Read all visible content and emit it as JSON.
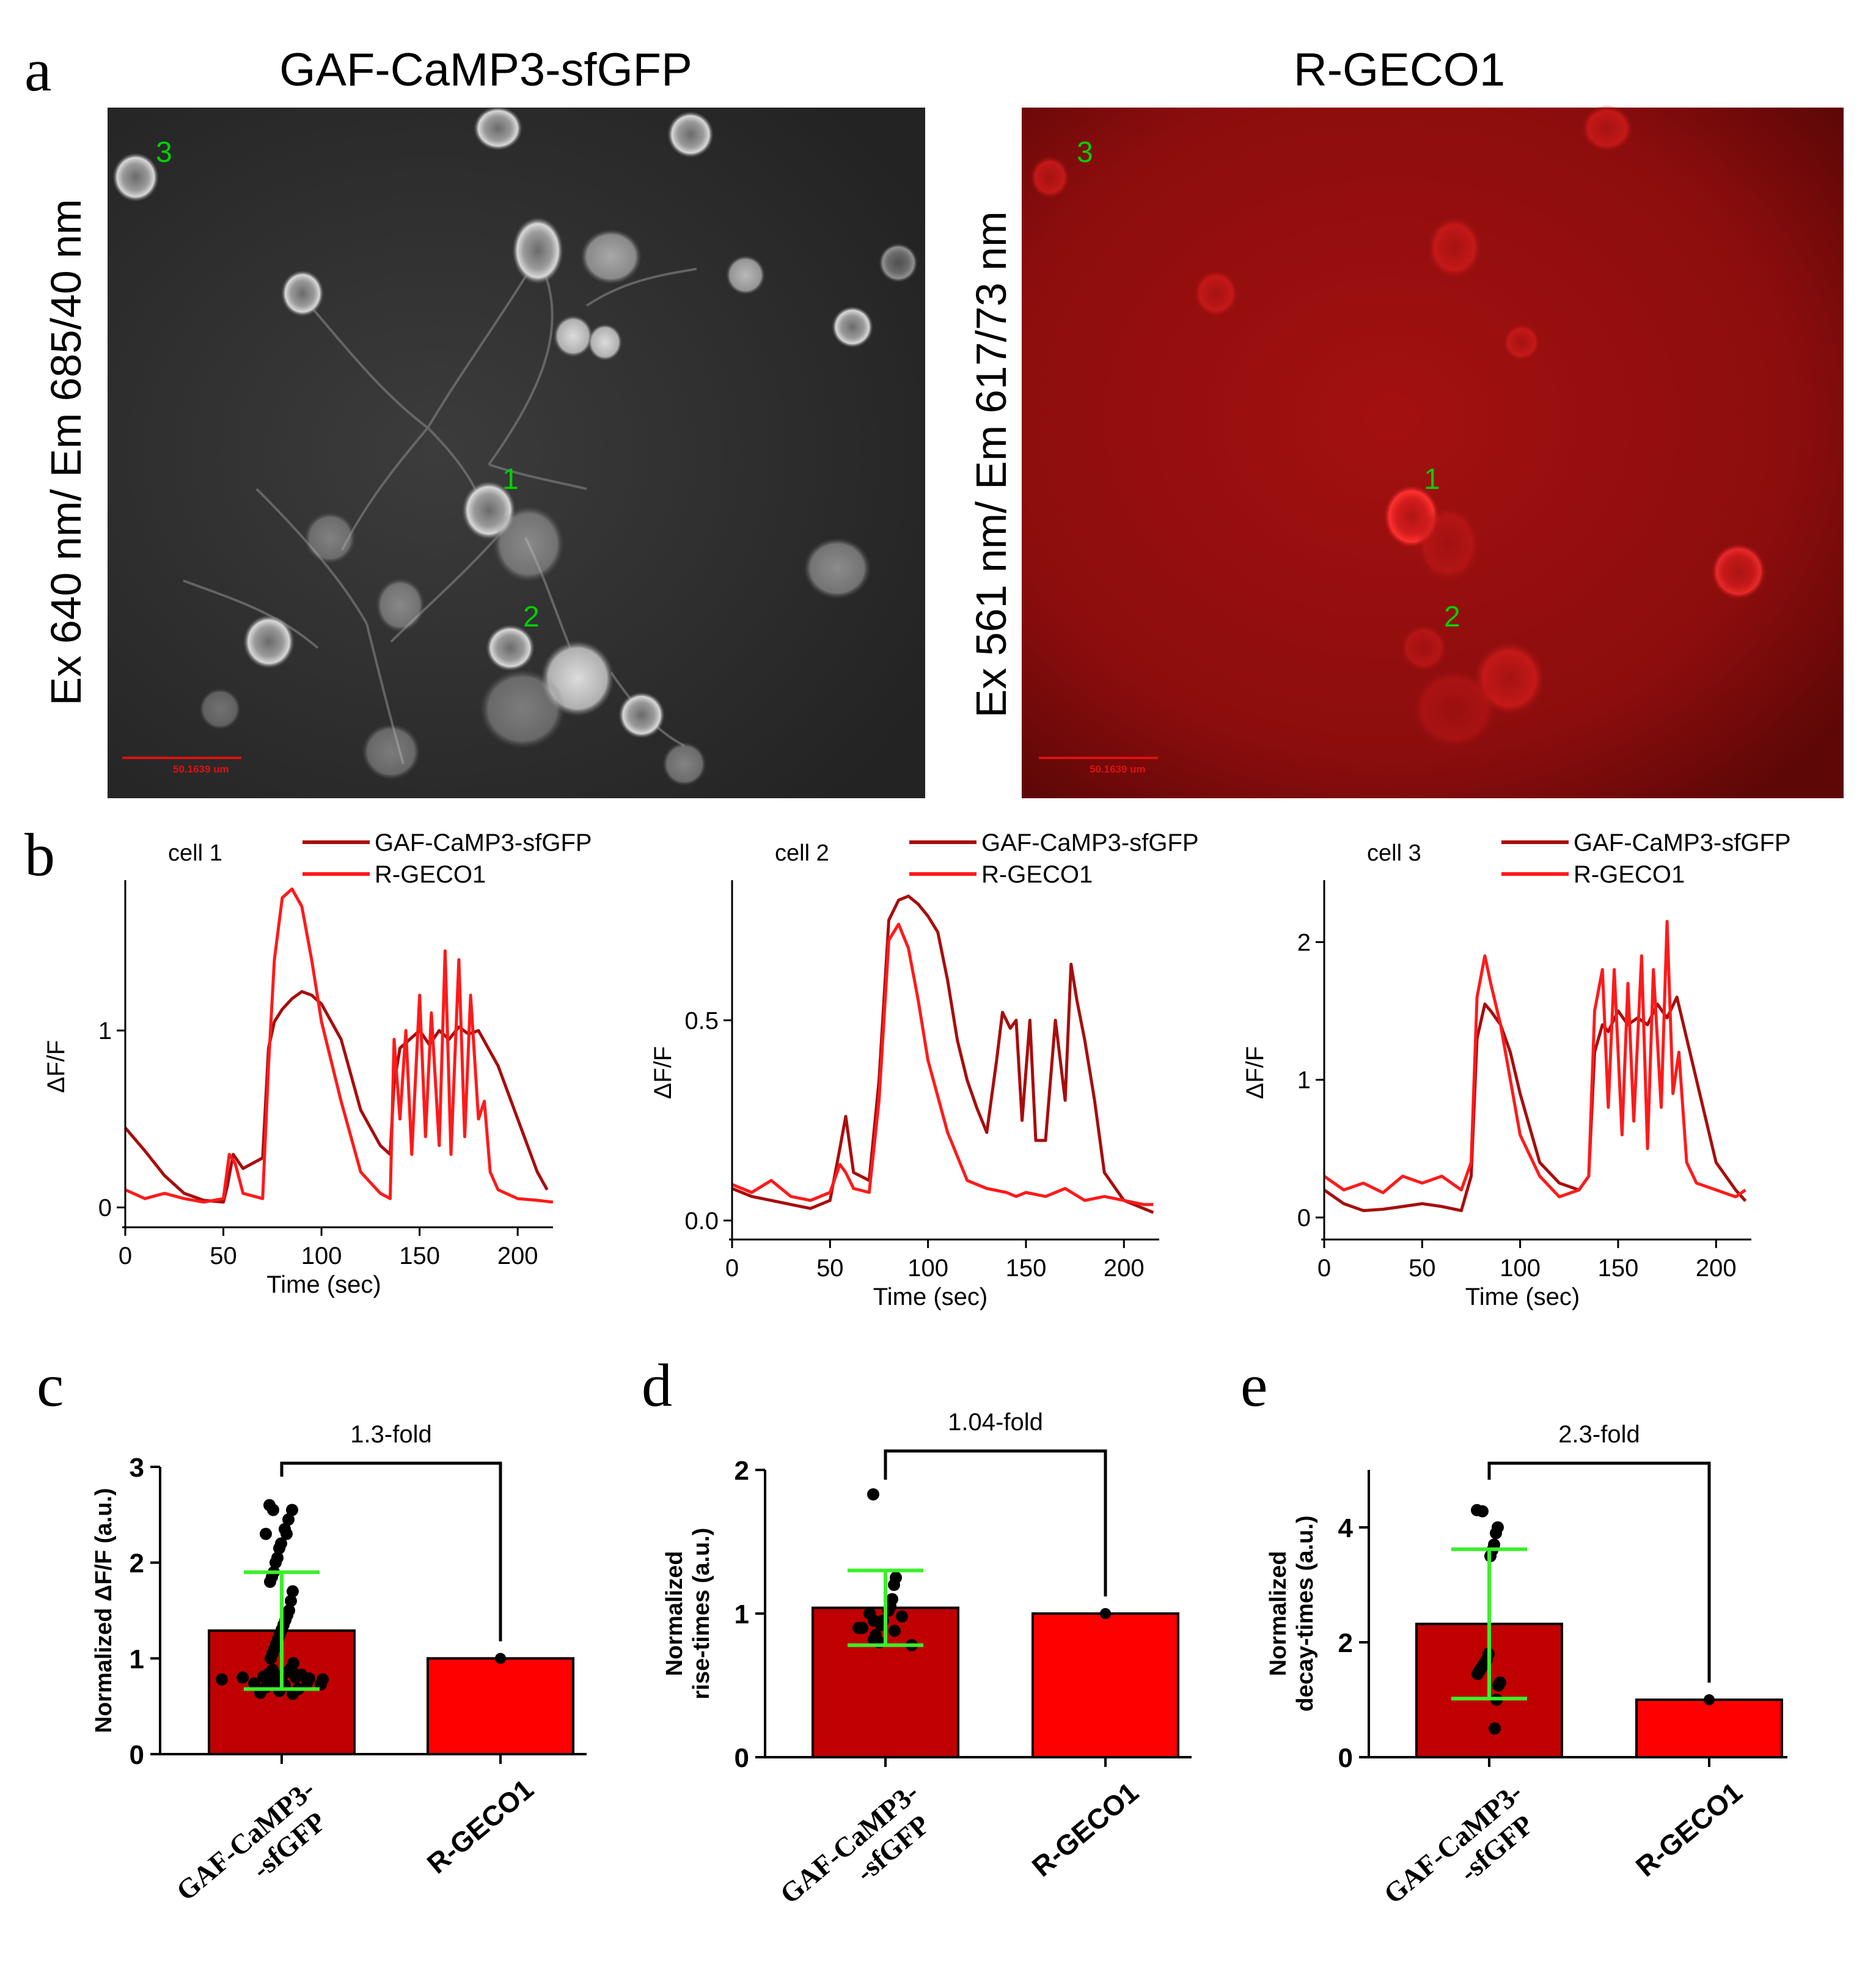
{
  "panel_letters": {
    "a": "a",
    "b": "b",
    "c": "c",
    "d": "d",
    "e": "e"
  },
  "panel_a": {
    "left": {
      "title": "GAF-CaMP3-sfGFP",
      "side_label": "Ex 640 nm/ Em 685/40 nm",
      "cell_labels": [
        "1",
        "2",
        "3"
      ],
      "scale_bar_text": "50.1639 um",
      "colors": {
        "background": "#2c2c2c",
        "cell": "#c9c9c9",
        "label": "#00d000",
        "scale_bar": "#e01010"
      }
    },
    "right": {
      "title": "R-GECO1",
      "side_label": "Ex 561 nm/ Em 617/73 nm",
      "cell_labels": [
        "1",
        "2",
        "3"
      ],
      "scale_bar_text": "50.1639 um",
      "colors": {
        "background": "#8c0d0d",
        "cell": "#ff2a2a",
        "label": "#00d000",
        "scale_bar": "#e01010"
      }
    }
  },
  "colors": {
    "gaf": "#a80d0d",
    "rgeco": "#ff1a1a",
    "bar_gaf": "#c00000",
    "bar_rgeco": "#ff0000",
    "error": "#3aef2a",
    "dots": "#000000"
  },
  "chart_data": [
    {
      "type": "line",
      "panel": "b",
      "title": "cell 1",
      "xlabel": "Time (sec)",
      "ylabel": "ΔF/F",
      "xlim": [
        0,
        218
      ],
      "ylim": [
        -0.05,
        1.85
      ],
      "xticks": [
        0,
        50,
        100,
        150,
        200
      ],
      "yticks": [
        0,
        1
      ],
      "legend": "top",
      "series": [
        {
          "name": "GAF-CaMP3-sfGFP",
          "x": [
            0,
            10,
            20,
            30,
            40,
            50,
            52,
            55,
            60,
            70,
            73,
            76,
            80,
            85,
            90,
            95,
            100,
            110,
            120,
            130,
            135,
            137,
            140,
            145,
            150,
            155,
            160,
            165,
            170,
            175,
            180,
            185,
            190,
            200,
            210,
            215
          ],
          "y": [
            0.45,
            0.32,
            0.18,
            0.08,
            0.04,
            0.03,
            0.12,
            0.3,
            0.22,
            0.28,
            0.9,
            1.05,
            1.12,
            1.18,
            1.22,
            1.2,
            1.15,
            0.95,
            0.55,
            0.35,
            0.3,
            0.7,
            0.9,
            0.95,
            1.0,
            0.92,
            1.0,
            0.95,
            1.02,
            0.98,
            1.0,
            0.9,
            0.8,
            0.5,
            0.2,
            0.1
          ]
        },
        {
          "name": "R-GECO1",
          "x": [
            0,
            10,
            20,
            30,
            40,
            50,
            53,
            56,
            60,
            70,
            73,
            76,
            80,
            85,
            90,
            95,
            100,
            110,
            120,
            130,
            135,
            137,
            140,
            143,
            146,
            150,
            153,
            156,
            160,
            163,
            166,
            170,
            173,
            176,
            180,
            183,
            186,
            190,
            200,
            210,
            218
          ],
          "y": [
            0.1,
            0.05,
            0.08,
            0.05,
            0.03,
            0.05,
            0.3,
            0.25,
            0.08,
            0.05,
            0.8,
            1.4,
            1.75,
            1.8,
            1.7,
            1.4,
            1.05,
            0.6,
            0.2,
            0.08,
            0.05,
            0.95,
            0.5,
            1.0,
            0.3,
            1.2,
            0.4,
            1.1,
            0.35,
            1.45,
            0.3,
            1.4,
            0.4,
            1.2,
            0.5,
            0.6,
            0.2,
            0.1,
            0.05,
            0.04,
            0.03
          ]
        }
      ]
    },
    {
      "type": "line",
      "panel": "b",
      "title": "cell 2",
      "xlabel": "Time (sec)",
      "ylabel": "ΔF/F",
      "xlim": [
        0,
        218
      ],
      "ylim": [
        -0.02,
        0.85
      ],
      "xticks": [
        0,
        50,
        100,
        150,
        200
      ],
      "yticks": [
        0.0,
        0.5
      ],
      "ytick_labels": [
        "0.0",
        "0.5"
      ],
      "legend": "top",
      "series": [
        {
          "name": "GAF-CaMP3-sfGFP",
          "x": [
            0,
            10,
            20,
            30,
            40,
            50,
            55,
            58,
            62,
            70,
            75,
            80,
            85,
            90,
            95,
            100,
            105,
            110,
            115,
            120,
            125,
            130,
            135,
            138,
            142,
            145,
            148,
            152,
            155,
            160,
            165,
            170,
            173,
            176,
            180,
            185,
            190,
            200,
            210,
            215
          ],
          "y": [
            0.08,
            0.06,
            0.05,
            0.04,
            0.03,
            0.05,
            0.18,
            0.26,
            0.12,
            0.1,
            0.35,
            0.75,
            0.8,
            0.81,
            0.79,
            0.76,
            0.72,
            0.6,
            0.45,
            0.35,
            0.28,
            0.22,
            0.4,
            0.52,
            0.48,
            0.5,
            0.25,
            0.5,
            0.2,
            0.2,
            0.5,
            0.3,
            0.64,
            0.55,
            0.45,
            0.3,
            0.12,
            0.05,
            0.03,
            0.02
          ]
        },
        {
          "name": "R-GECO1",
          "x": [
            0,
            10,
            20,
            30,
            40,
            50,
            55,
            58,
            62,
            70,
            75,
            80,
            85,
            90,
            95,
            100,
            110,
            120,
            130,
            140,
            145,
            150,
            160,
            170,
            180,
            190,
            200,
            210,
            215
          ],
          "y": [
            0.09,
            0.07,
            0.1,
            0.06,
            0.05,
            0.07,
            0.14,
            0.12,
            0.08,
            0.07,
            0.3,
            0.7,
            0.74,
            0.68,
            0.55,
            0.4,
            0.22,
            0.1,
            0.08,
            0.07,
            0.06,
            0.07,
            0.06,
            0.08,
            0.05,
            0.06,
            0.05,
            0.04,
            0.04
          ]
        }
      ]
    },
    {
      "type": "line",
      "panel": "b",
      "title": "cell 3",
      "xlabel": "Time (sec)",
      "ylabel": "ΔF/F",
      "xlim": [
        0,
        218
      ],
      "ylim": [
        -0.08,
        2.45
      ],
      "xticks": [
        0,
        50,
        100,
        150,
        200
      ],
      "yticks": [
        0,
        1,
        2
      ],
      "legend": "top",
      "series": [
        {
          "name": "GAF-CaMP3-sfGFP",
          "x": [
            0,
            10,
            20,
            30,
            40,
            50,
            60,
            70,
            75,
            78,
            82,
            85,
            90,
            95,
            100,
            110,
            120,
            130,
            135,
            138,
            142,
            145,
            150,
            155,
            160,
            165,
            170,
            175,
            180,
            185,
            190,
            200,
            210,
            215
          ],
          "y": [
            0.2,
            0.1,
            0.05,
            0.06,
            0.08,
            0.1,
            0.08,
            0.05,
            0.3,
            1.3,
            1.55,
            1.5,
            1.4,
            1.2,
            0.9,
            0.4,
            0.25,
            0.2,
            0.3,
            1.2,
            1.4,
            1.35,
            1.5,
            1.4,
            1.45,
            1.4,
            1.55,
            1.45,
            1.6,
            1.3,
            1.0,
            0.4,
            0.2,
            0.12
          ]
        },
        {
          "name": "R-GECO1",
          "x": [
            0,
            10,
            20,
            30,
            40,
            50,
            60,
            70,
            75,
            78,
            82,
            85,
            90,
            95,
            100,
            110,
            120,
            130,
            135,
            138,
            142,
            145,
            148,
            152,
            155,
            158,
            162,
            165,
            168,
            172,
            175,
            178,
            181,
            185,
            190,
            200,
            210,
            215
          ],
          "y": [
            0.3,
            0.2,
            0.25,
            0.18,
            0.3,
            0.25,
            0.3,
            0.2,
            0.4,
            1.6,
            1.9,
            1.7,
            1.4,
            1.0,
            0.6,
            0.3,
            0.15,
            0.2,
            0.3,
            1.5,
            1.8,
            0.8,
            1.8,
            0.6,
            1.7,
            0.7,
            1.9,
            0.5,
            1.8,
            0.8,
            2.15,
            0.9,
            1.2,
            0.4,
            0.25,
            0.2,
            0.15,
            0.2
          ]
        }
      ]
    },
    {
      "type": "bar",
      "panel": "c",
      "categories": [
        "GAF-CaMP3-\n-sfGFP",
        "R-GECO1"
      ],
      "values": [
        1.29,
        1.0
      ],
      "errors": [
        0.61,
        0.0
      ],
      "ylabel": "Normalized ΔF/F  (a.u.)",
      "ylim": [
        0,
        3
      ],
      "yticks": [
        0,
        1,
        2,
        3
      ],
      "annotation": "1.3-fold",
      "points": [
        2.6,
        2.55,
        2.55,
        2.45,
        2.3,
        2.35,
        2.3,
        2.2,
        2.15,
        2.05,
        2.0,
        1.9,
        1.85,
        1.8,
        1.7,
        1.6,
        1.5,
        1.45,
        1.4,
        1.35,
        1.3,
        1.25,
        1.2,
        1.15,
        1.1,
        1.05,
        1.0,
        0.95,
        0.9,
        0.88,
        0.86,
        0.84,
        0.83,
        0.82,
        0.81,
        0.8,
        0.8,
        0.79,
        0.78,
        0.78,
        0.77,
        0.76,
        0.75,
        0.74,
        0.73,
        0.72,
        0.7,
        0.68,
        0.66,
        0.64,
        0.63
      ]
    },
    {
      "type": "bar",
      "panel": "d",
      "categories": [
        "GAF-CaMP3-\n-sfGFP",
        "R-GECO1"
      ],
      "values": [
        1.04,
        1.0
      ],
      "errors": [
        0.26,
        0.0
      ],
      "ylabel": "Normalized\nrise-times  (a.u.)",
      "ylim": [
        0,
        2
      ],
      "yticks": [
        0,
        1,
        2
      ],
      "annotation": "1.04-fold",
      "points": [
        1.83,
        1.25,
        1.2,
        1.1,
        1.05,
        1.02,
        1.0,
        0.98,
        0.95,
        0.92,
        0.9,
        0.88,
        0.85,
        0.82,
        0.8,
        0.78,
        0.9,
        0.95
      ]
    },
    {
      "type": "bar",
      "panel": "e",
      "categories": [
        "GAF-CaMP3-\n-sfGFP",
        "R-GECO1"
      ],
      "values": [
        2.32,
        1.0
      ],
      "errors": [
        1.3,
        0.0
      ],
      "ylabel": "Normalized\ndecay-times  (a.u.)",
      "ylim": [
        0,
        5
      ],
      "yticks": [
        0,
        2,
        4
      ],
      "annotation": "2.3-fold",
      "points": [
        4.3,
        4.28,
        4.0,
        3.9,
        3.7,
        3.6,
        3.5,
        1.8,
        1.7,
        1.65,
        1.6,
        1.55,
        1.5,
        1.45,
        1.3,
        1.25,
        1.0,
        0.5
      ]
    }
  ]
}
